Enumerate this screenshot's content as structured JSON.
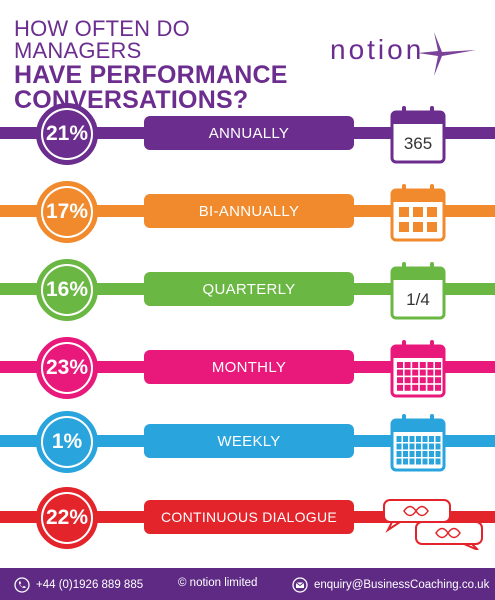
{
  "title": {
    "line1": "HOW OFTEN DO MANAGERS",
    "line2": "HAVE PERFORMANCE",
    "line3": "CONVERSATIONS?"
  },
  "logo": {
    "text": "notion"
  },
  "colors": {
    "annually": "#6b2d8e",
    "bi_annually": "#f08a2c",
    "quarterly": "#6ab843",
    "monthly": "#e8197b",
    "weekly": "#2aa4dc",
    "continuous": "#e3242b",
    "footer": "#5e2a84"
  },
  "chart_data": {
    "type": "table",
    "title": "HOW OFTEN DO MANAGERS HAVE PERFORMANCE CONVERSATIONS?",
    "categories": [
      "ANNUALLY",
      "BI-ANNUALLY",
      "QUARTERLY",
      "MONTHLY",
      "WEEKLY",
      "CONTINUOUS DIALOGUE"
    ],
    "values": [
      21,
      17,
      16,
      23,
      1,
      22
    ],
    "labels": [
      "21%",
      "17%",
      "16%",
      "23%",
      "1%",
      "22%"
    ]
  },
  "rows": [
    {
      "pct": "21%",
      "label": "ANNUALLY",
      "icon": "calendar-365-icon",
      "icon_text": "365"
    },
    {
      "pct": "17%",
      "label": "BI-ANNUALLY",
      "icon": "calendar-grid-icon"
    },
    {
      "pct": "16%",
      "label": "QUARTERLY",
      "icon": "calendar-quarter-icon",
      "icon_text": "1/4"
    },
    {
      "pct": "23%",
      "label": "MONTHLY",
      "icon": "calendar-month-icon"
    },
    {
      "pct": "1%",
      "label": "WEEKLY",
      "icon": "calendar-week-icon"
    },
    {
      "pct": "22%",
      "label": "CONTINUOUS DIALOGUE",
      "icon": "speech-bubbles-icon"
    }
  ],
  "footer": {
    "phone": "+44 (0)1926 889 885",
    "copyright": "© notion limited",
    "email": "enquiry@BusinessCoaching.co.uk"
  }
}
